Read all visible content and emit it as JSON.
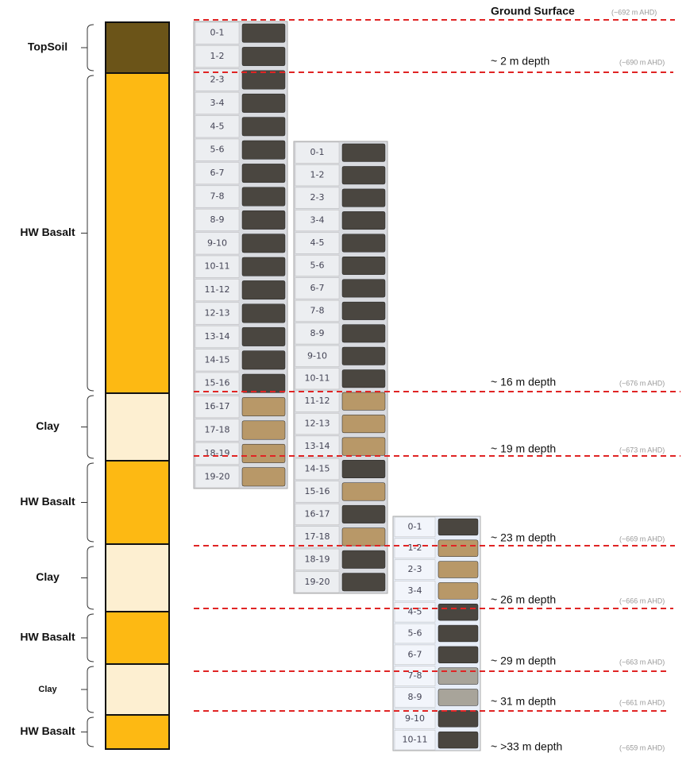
{
  "layers": [
    "TopSoil",
    "HW Basalt",
    "Clay",
    "HW Basalt",
    "Clay",
    "HW Basalt",
    "Clay",
    "HW Basalt"
  ],
  "depth_markers": [
    {
      "label": "Ground Surface",
      "elevation": "(~692 m AHD)"
    },
    {
      "label": "~ 2 m depth",
      "elevation": "(~690 m AHD)"
    },
    {
      "label": "~ 16 m depth",
      "elevation": "(~676 m AHD)"
    },
    {
      "label": "~ 19 m depth",
      "elevation": "(~673 m AHD)"
    },
    {
      "label": "~ 23 m depth",
      "elevation": "(~669 m AHD)"
    },
    {
      "label": "~ 26 m depth",
      "elevation": "(~666 m AHD)"
    },
    {
      "label": "~ 29 m depth",
      "elevation": "(~663 m AHD)"
    },
    {
      "label": "~ 31 m depth",
      "elevation": "(~661 m AHD)"
    },
    {
      "label": "~ >33 m depth",
      "elevation": "(~659 m AHD)"
    }
  ],
  "core_trays": [
    {
      "labels": [
        "0-1",
        "1-2",
        "2-3",
        "3-4",
        "4-5",
        "5-6",
        "6-7",
        "7-8",
        "8-9",
        "9-10",
        "10-11",
        "11-12",
        "12-13",
        "13-14",
        "14-15",
        "15-16",
        "16-17",
        "17-18",
        "18-19",
        "19-20"
      ]
    },
    {
      "labels": [
        "0-1",
        "1-2",
        "2-3",
        "3-4",
        "4-5",
        "5-6",
        "6-7",
        "7-8",
        "8-9",
        "9-10",
        "10-11",
        "11-12",
        "12-13",
        "13-14",
        "14-15",
        "15-16",
        "16-17",
        "17-18",
        "18-19",
        "19-20"
      ]
    },
    {
      "labels": [
        "0-1",
        "1-2",
        "2-3",
        "3-4",
        "4-5",
        "5-6",
        "6-7",
        "7-8",
        "8-9",
        "9-10",
        "10-11"
      ]
    }
  ]
}
